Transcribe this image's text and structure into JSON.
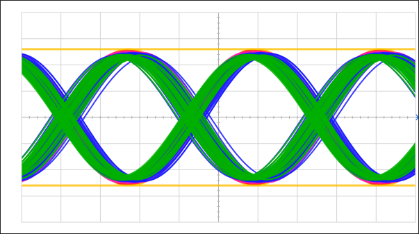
{
  "chart_data": {
    "type": "line",
    "title": "",
    "xlabel": "",
    "ylabel": "",
    "grid": true,
    "grid_divisions": {
      "x": 10,
      "y": 8
    },
    "x_range": [
      0,
      10
    ],
    "y_range": [
      -4,
      4
    ],
    "trigger_marker_icon": "trigger-arrow-icon",
    "trigger_level": 0,
    "series": [
      {
        "kind": "eye-diagram-persistence",
        "amplitude": 2.6,
        "unit_intervals_per_screen": 3.25,
        "eye_crossings_x": [
          1.15,
          4.35,
          7.65
        ]
      }
    ],
    "colors": {
      "background": "#ffffff",
      "grid": "#d3d3d3",
      "axis": "#b0b0b0",
      "frame": "#222222",
      "trigger_marker": "#1e6ee6",
      "persistence_low": "#00b000",
      "persistence_mid": "#1a1aff",
      "persistence_high": "#ff1ab5",
      "persistence_peak": "#ff2020",
      "persistence_max": "#ffc000"
    }
  }
}
